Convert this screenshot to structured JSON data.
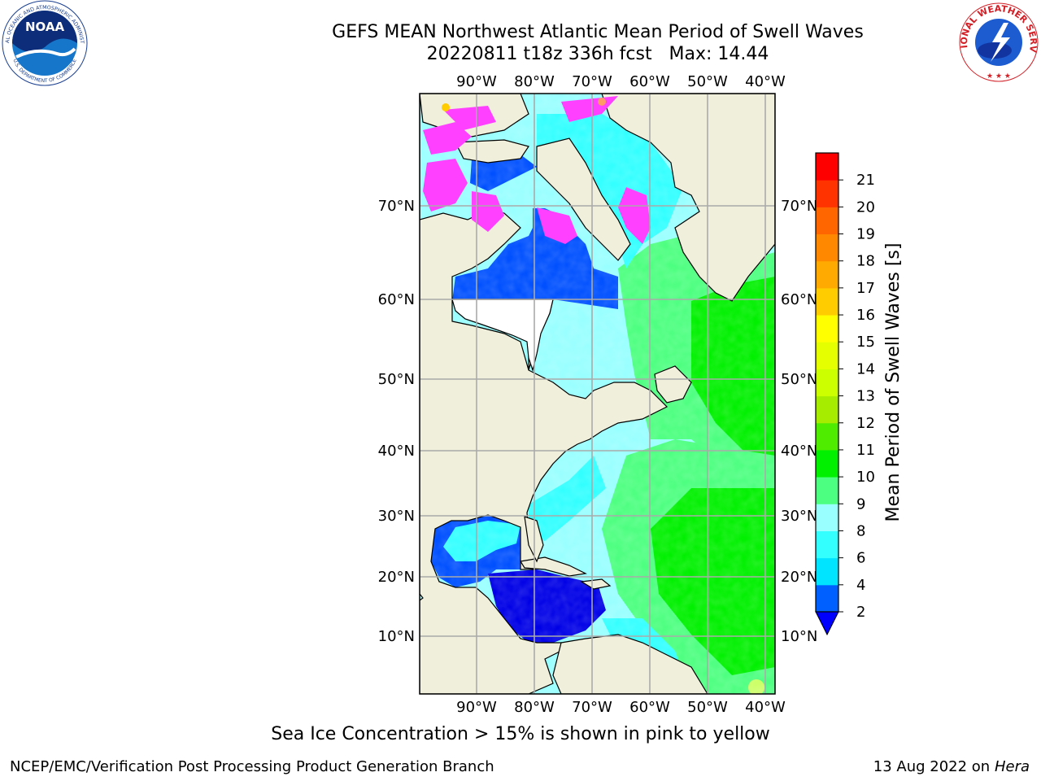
{
  "header": {
    "title_line1": "GEFS MEAN Northwest Atlantic Mean Period of Swell Waves",
    "title_line2": "20220811 t18z 336h fcst   Max: 14.44"
  },
  "map": {
    "lon_labels": [
      "90°W",
      "80°W",
      "70°W",
      "60°W",
      "50°W",
      "40°W"
    ],
    "lat_labels": [
      "70°N",
      "60°N",
      "50°N",
      "40°N",
      "30°N",
      "20°N",
      "10°N"
    ],
    "land_color": "#efefdc",
    "ocean_colors": {
      "blue": "#0050ff",
      "deep_blue": "#0000e6",
      "cyan": "#33ffff",
      "light_cyan": "#99ffff",
      "mint": "#4dff80",
      "green": "#00f000",
      "sea_ice_pink": "#ff40ff"
    }
  },
  "colorbar": {
    "label": "Mean Period of Swell Waves [s]",
    "ticks": [
      "2",
      "4",
      "6",
      "8",
      "9",
      "10",
      "11",
      "12",
      "13",
      "14",
      "15",
      "16",
      "17",
      "18",
      "19",
      "20",
      "21"
    ],
    "colors": [
      "#0060ff",
      "#00e4ff",
      "#33ffff",
      "#99ffff",
      "#4dff80",
      "#00f000",
      "#50ec00",
      "#a6ec00",
      "#ccff00",
      "#e6ff00",
      "#ffff00",
      "#ffcc00",
      "#ffaa00",
      "#ff8800",
      "#ff6600",
      "#ff3300",
      "#ff0000"
    ],
    "under_color": "#0000ff"
  },
  "notes": {
    "ice": "Sea Ice Concentration > 15% is shown in pink to yellow"
  },
  "footer": {
    "left": "NCEP/EMC/Verification Post Processing Product Generation Branch",
    "right_date": "13 Aug 2022 on",
    "right_host": "Hera"
  },
  "logos": {
    "noaa_text": "NOAA",
    "noaa_ring": "NATIONAL OCEANIC AND ATMOSPHERIC ADMINISTRATION",
    "noaa_ring_bottom": "U.S. DEPARTMENT OF COMMERCE",
    "nws_ring": "NATIONAL WEATHER SERVICE"
  }
}
